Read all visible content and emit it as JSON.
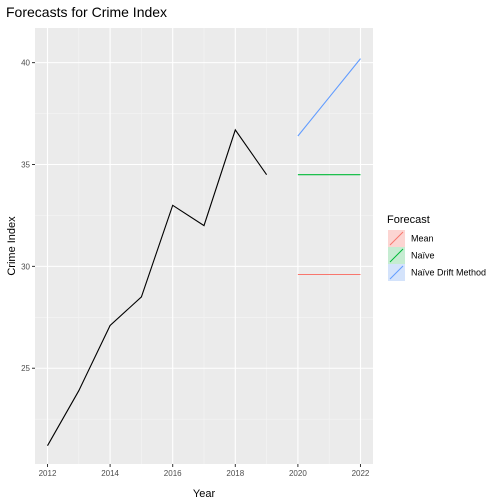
{
  "chart_data": {
    "type": "line",
    "title": "Forecasts for Crime Index",
    "xlabel": "Year",
    "ylabel": "Crime Index",
    "xlim": [
      2011.6,
      2022.4
    ],
    "ylim": [
      20.3,
      41.7
    ],
    "x_ticks": [
      2012,
      2014,
      2016,
      2018,
      2020,
      2022
    ],
    "y_ticks": [
      25,
      30,
      35,
      40
    ],
    "grid": true,
    "legend_position": "right",
    "legend_title": "Forecast",
    "history": {
      "color": "#000000",
      "x": [
        2012,
        2013,
        2014,
        2015,
        2016,
        2017,
        2018,
        2019
      ],
      "y": [
        21.2,
        23.9,
        27.1,
        28.5,
        33.0,
        32.0,
        36.7,
        34.5
      ]
    },
    "series": [
      {
        "name": "Mean",
        "color": "#f8766d",
        "x": [
          2020,
          2021,
          2022
        ],
        "y": [
          29.6,
          29.6,
          29.6
        ]
      },
      {
        "name": "Naïve",
        "color": "#00ba38",
        "x": [
          2020,
          2021,
          2022
        ],
        "y": [
          34.5,
          34.5,
          34.5
        ]
      },
      {
        "name": "Naïve Drift Method",
        "color": "#619cff",
        "x": [
          2020,
          2021,
          2022
        ],
        "y": [
          36.4,
          38.3,
          40.2
        ]
      }
    ]
  }
}
